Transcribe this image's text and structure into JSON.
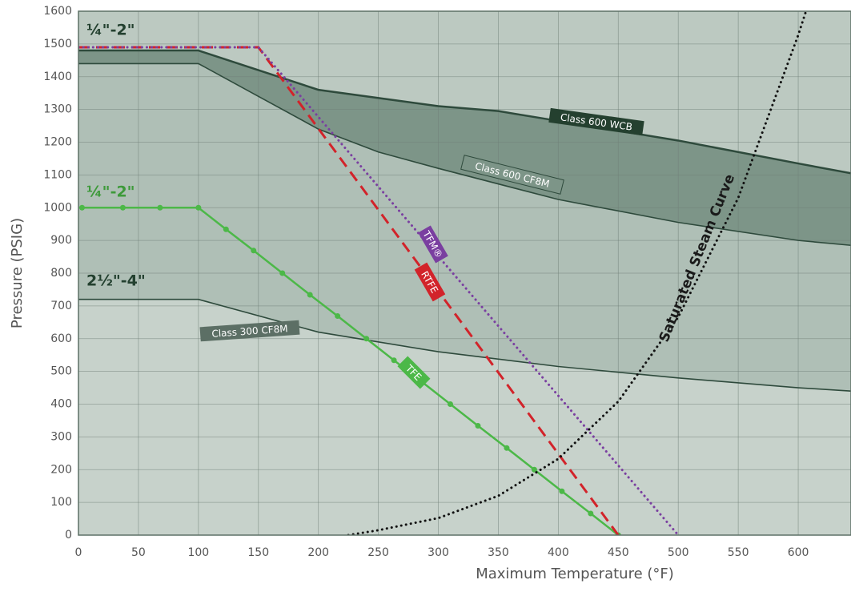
{
  "chart_data": {
    "type": "line",
    "xlabel": "Maximum Temperature (°F)",
    "ylabel": "Pressure (PSIG)",
    "xlim": [
      0,
      644
    ],
    "ylim": [
      0,
      1600
    ],
    "xticks": [
      0,
      50,
      100,
      150,
      200,
      250,
      300,
      350,
      400,
      450,
      500,
      550,
      600
    ],
    "yticks": [
      0,
      100,
      200,
      300,
      400,
      500,
      600,
      700,
      800,
      900,
      1000,
      1100,
      1200,
      1300,
      1400,
      1500,
      1600
    ],
    "grid": true,
    "annotations": [
      "¼\"-2\"",
      "¼\"-2\"",
      "2½\"-4\""
    ],
    "series": [
      {
        "name": "Class 600 WCB",
        "color": "#7d9588",
        "style": "area",
        "x": [
          0,
          100,
          200,
          300,
          350,
          400,
          500,
          600,
          644
        ],
        "values": [
          1480,
          1480,
          1360,
          1310,
          1295,
          1265,
          1205,
          1135,
          1105
        ]
      },
      {
        "name": "Class 600 CF8M",
        "color": "#afbfb6",
        "style": "area",
        "x": [
          0,
          100,
          150,
          200,
          250,
          300,
          400,
          500,
          600,
          644
        ],
        "values": [
          1440,
          1440,
          1340,
          1240,
          1170,
          1120,
          1025,
          955,
          900,
          885
        ]
      },
      {
        "name": "Class 300 CF8M",
        "color": "#c7d2cb",
        "style": "area",
        "x": [
          0,
          100,
          200,
          300,
          400,
          500,
          600,
          644
        ],
        "values": [
          720,
          720,
          620,
          560,
          515,
          480,
          450,
          440
        ]
      },
      {
        "name": "TFE",
        "color": "#4cb848",
        "style": "solid",
        "markers": true,
        "x": [
          3,
          37,
          68,
          100,
          123,
          146,
          170,
          193,
          216,
          240,
          263,
          287,
          310,
          333,
          357,
          380,
          403,
          427,
          450
        ],
        "values": [
          1000,
          1000,
          1000,
          1000,
          934,
          869,
          800,
          734,
          669,
          600,
          534,
          466,
          400,
          334,
          266,
          200,
          134,
          66,
          0
        ]
      },
      {
        "name": "RTFE",
        "color": "#d2232a",
        "style": "dashed",
        "x": [
          0,
          150,
          450
        ],
        "values": [
          1490,
          1490,
          0
        ]
      },
      {
        "name": "TFM®",
        "color": "#7a3fa0",
        "style": "dotted",
        "x": [
          0,
          150,
          500
        ],
        "values": [
          1490,
          1490,
          0
        ]
      },
      {
        "name": "Saturated Steam Curve",
        "color": "#111111",
        "style": "dotted",
        "x": [
          225,
          250,
          300,
          350,
          400,
          450,
          500,
          550,
          600,
          610
        ],
        "values": [
          0,
          15,
          52,
          120,
          233,
          408,
          666,
          1030,
          1527,
          1640
        ]
      }
    ]
  }
}
